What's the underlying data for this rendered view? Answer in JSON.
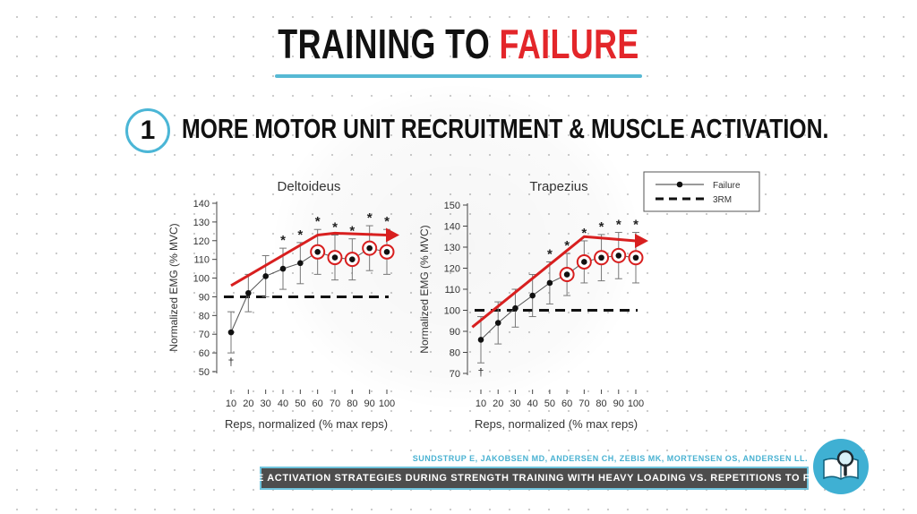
{
  "slide": {
    "title_part1": "TRAINING TO ",
    "title_part2": "FAILURE",
    "point_number": "1",
    "point_text": "MORE MOTOR UNIT RECRUITMENT & MUSCLE ACTIVATION.",
    "citation": "SUNDSTRUP E, JAKOBSEN MD, ANDERSEN CH, ZEBIS MK, MORTENSEN OS, ANDERSEN LL.",
    "footer_title": "MUSCLE ACTIVATION STRATEGIES DURING STRENGTH TRAINING WITH HEAVY LOADING VS. REPETITIONS TO FAILURE",
    "colors": {
      "accent": "#e3262a",
      "brand_blue": "#4bb6d6"
    },
    "icons": [
      "book-magnifier-icon"
    ]
  },
  "legend": {
    "failure_label": "Failure",
    "threerm_label": "3RM"
  },
  "chart_data": [
    {
      "type": "line",
      "title": "Deltoideus",
      "xlabel": "Reps, normalized (% max reps)",
      "ylabel": "Normalized EMG (% MVC)",
      "x": [
        10,
        20,
        30,
        40,
        50,
        60,
        70,
        80,
        90,
        100
      ],
      "ylim": [
        50,
        140
      ],
      "yticks": [
        50,
        60,
        70,
        80,
        90,
        100,
        110,
        120,
        130,
        140
      ],
      "series": [
        {
          "name": "Failure",
          "values": [
            71,
            92,
            101,
            105,
            108,
            114,
            111,
            110,
            116,
            114
          ],
          "err": [
            11,
            10,
            11,
            11,
            11,
            12,
            12,
            11,
            12,
            12
          ]
        },
        {
          "name": "3RM",
          "values": [
            90,
            90,
            90,
            90,
            90,
            90,
            90,
            90,
            90,
            90
          ]
        }
      ],
      "significant": [
        40,
        50,
        60,
        70,
        80,
        90,
        100
      ],
      "dagger": [
        10
      ],
      "highlighted": [
        60,
        70,
        80,
        90,
        100
      ],
      "trend_arrow": [
        [
          10,
          96
        ],
        [
          60,
          123
        ],
        [
          70,
          124
        ],
        [
          100,
          123
        ]
      ],
      "legend": false
    },
    {
      "type": "line",
      "title": "Trapezius",
      "xlabel": "Reps, normalized (% max reps)",
      "ylabel": "Normalized EMG (% MVC)",
      "x": [
        10,
        20,
        30,
        40,
        50,
        60,
        70,
        80,
        90,
        100
      ],
      "ylim": [
        70,
        150
      ],
      "yticks": [
        70,
        80,
        90,
        100,
        110,
        120,
        130,
        140,
        150
      ],
      "series": [
        {
          "name": "Failure",
          "values": [
            86,
            94,
            101,
            107,
            113,
            117,
            123,
            125,
            126,
            125
          ],
          "err": [
            11,
            10,
            9,
            10,
            10,
            10,
            10,
            11,
            11,
            12
          ]
        },
        {
          "name": "3RM",
          "values": [
            100,
            100,
            100,
            100,
            100,
            100,
            100,
            100,
            100,
            100
          ]
        }
      ],
      "significant": [
        50,
        60,
        70,
        80,
        90,
        100
      ],
      "dagger": [
        10
      ],
      "highlighted": [
        60,
        70,
        80,
        90,
        100
      ],
      "trend_arrow": [
        [
          5,
          92
        ],
        [
          70,
          135
        ],
        [
          100,
          133
        ]
      ],
      "legend": "top-right"
    }
  ]
}
